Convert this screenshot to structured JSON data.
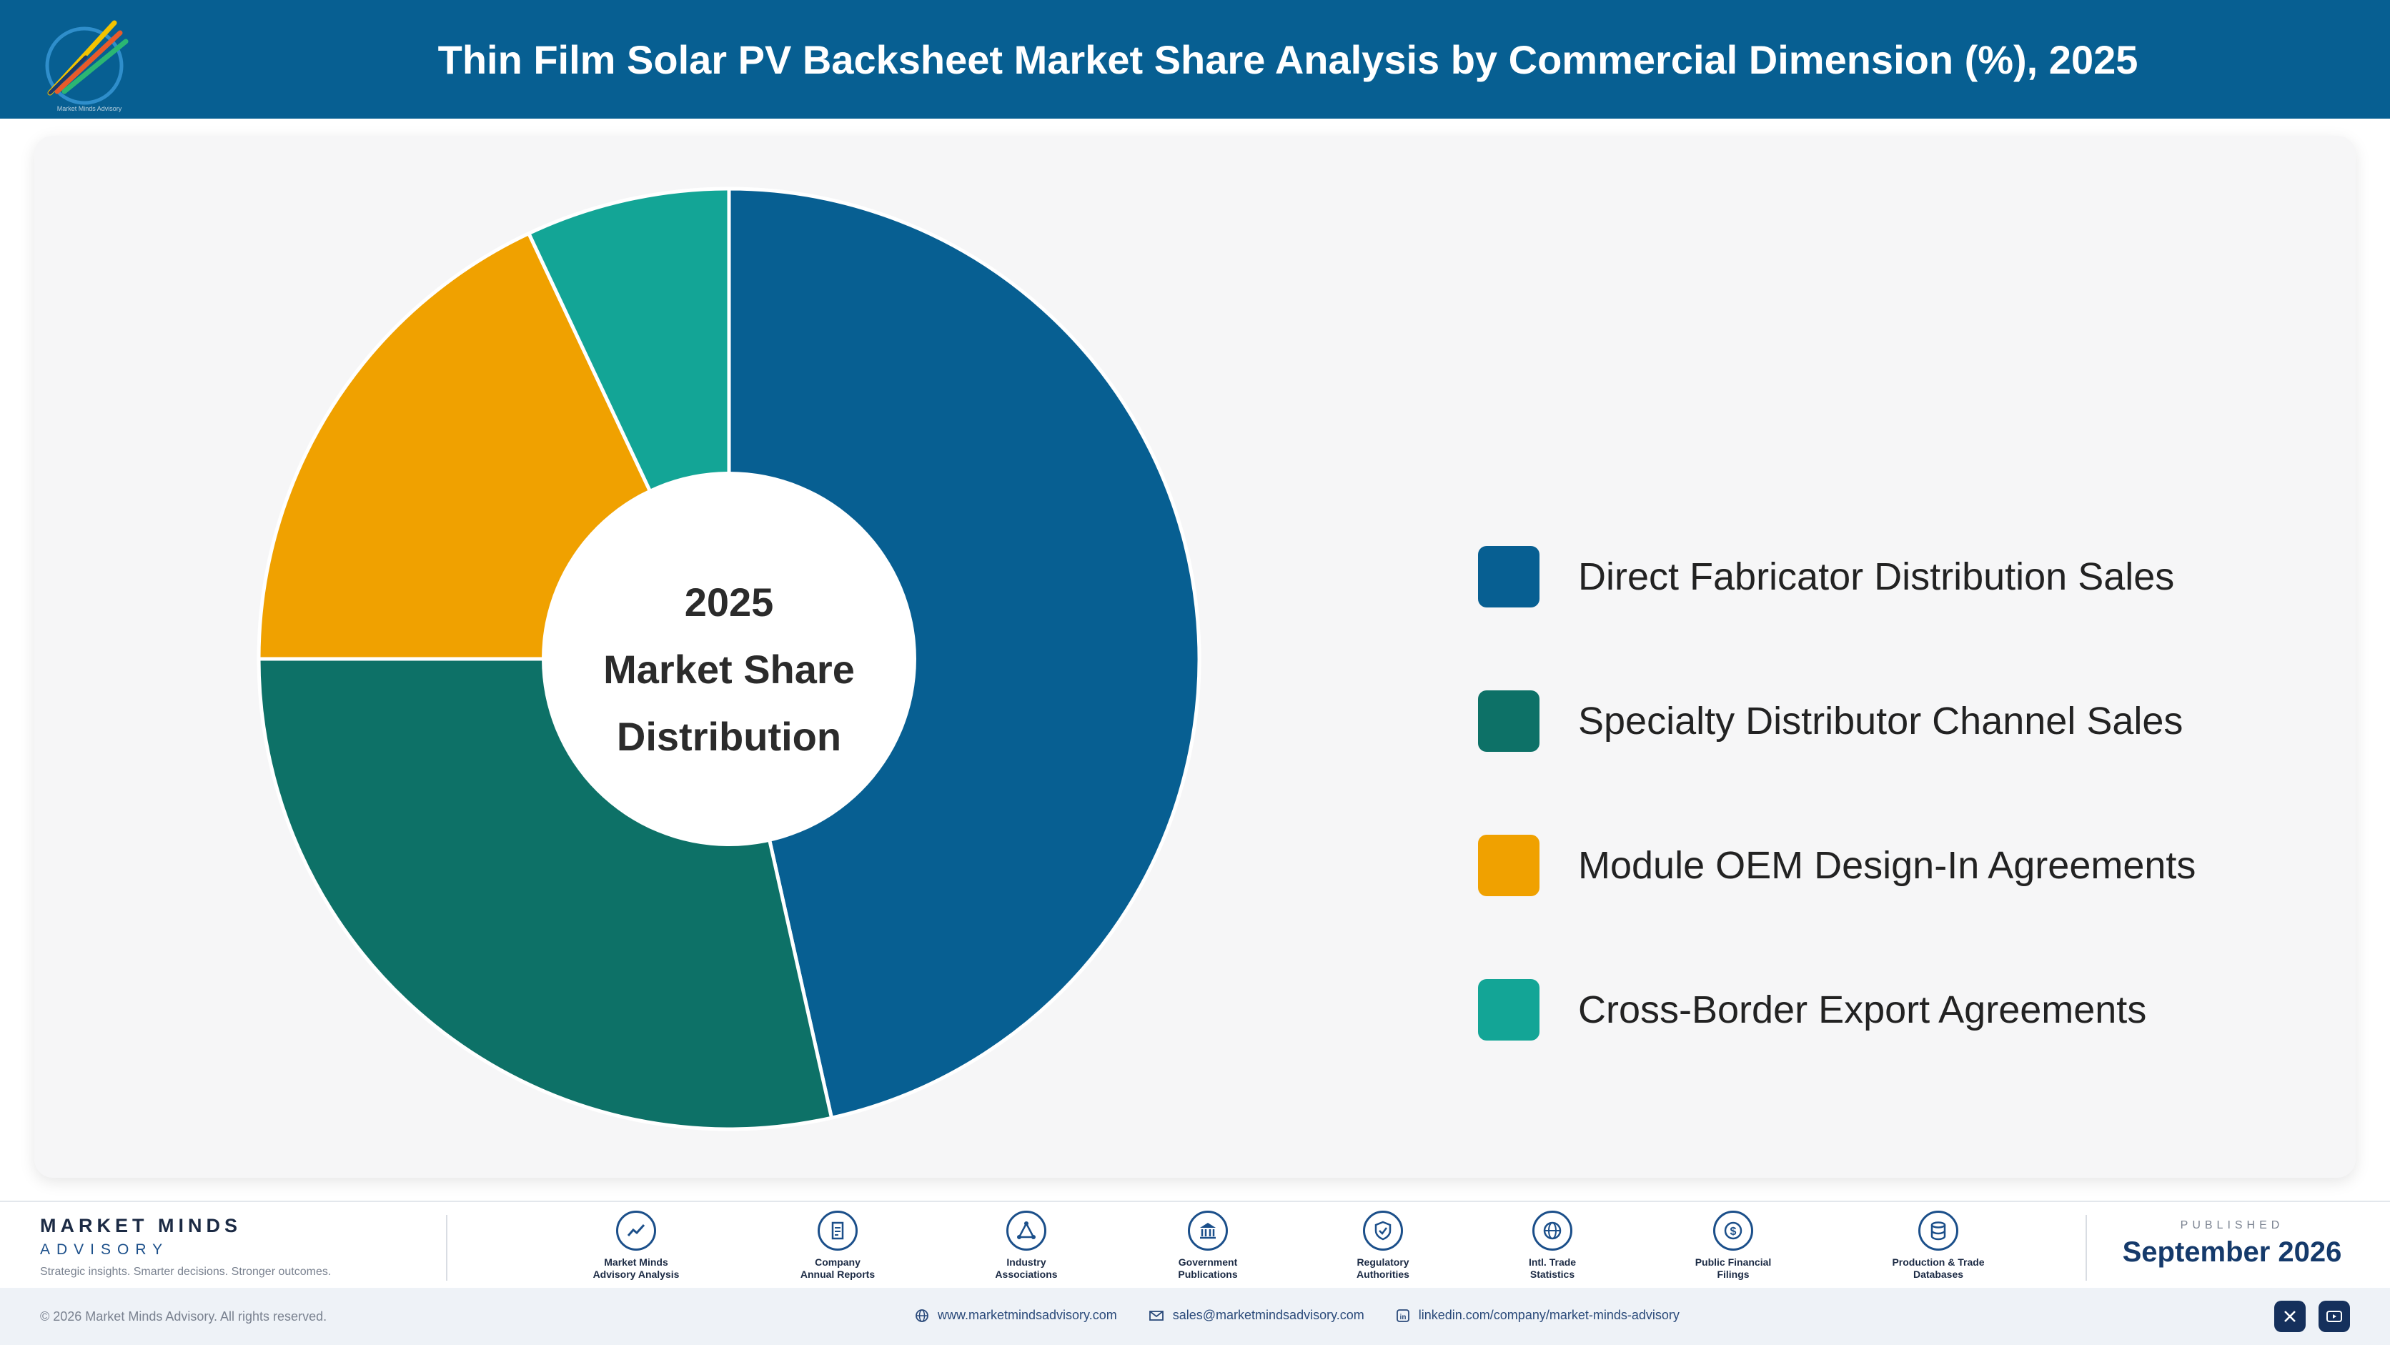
{
  "header": {
    "title": "Thin Film Solar PV Backsheet Market Share Analysis by Commercial Dimension (%), 2025",
    "logo_icon": "market-minds-logo-icon"
  },
  "chart_data": {
    "type": "pie",
    "center_label": [
      "2025",
      "Market Share",
      "Distribution"
    ],
    "categories": [
      "Direct Fabricator Distribution Sales",
      "Specialty Distributor Channel Sales",
      "Module OEM Design-In Agreements",
      "Cross-Border Export Agreements"
    ],
    "values": [
      46.5,
      28.5,
      18.0,
      7.0
    ],
    "colors": [
      "#075f92",
      "#0d7167",
      "#f0a100",
      "#13a596"
    ],
    "legend_position": "right"
  },
  "footer": {
    "brand_name": "MARKET MINDS",
    "brand_sub": "ADVISORY",
    "brand_tagline": "Strategic insights. Smarter decisions. Stronger outcomes.",
    "sources": [
      {
        "line1": "Market Minds",
        "line2": "Advisory Analysis",
        "icon": "trend-chart-icon"
      },
      {
        "line1": "Company",
        "line2": "Annual Reports",
        "icon": "document-icon"
      },
      {
        "line1": "Industry",
        "line2": "Associations",
        "icon": "network-icon"
      },
      {
        "line1": "Government",
        "line2": "Publications",
        "icon": "government-building-icon"
      },
      {
        "line1": "Regulatory",
        "line2": "Authorities",
        "icon": "shield-check-icon"
      },
      {
        "line1": "Intl. Trade",
        "line2": "Statistics",
        "icon": "globe-icon"
      },
      {
        "line1": "Public Financial",
        "line2": "Filings",
        "icon": "dollar-coin-icon"
      },
      {
        "line1": "Production & Trade",
        "line2": "Databases",
        "icon": "database-icon"
      }
    ],
    "published_label": "PUBLISHED",
    "published_date": "September 2026"
  },
  "bottom_bar": {
    "copyright": "© 2026 Market Minds Advisory. All rights reserved.",
    "website": "www.marketmindsadvisory.com",
    "email": "sales@marketmindsadvisory.com",
    "linkedin": "linkedin.com/company/market-minds-advisory",
    "socials": [
      "x-icon",
      "youtube-icon"
    ]
  }
}
